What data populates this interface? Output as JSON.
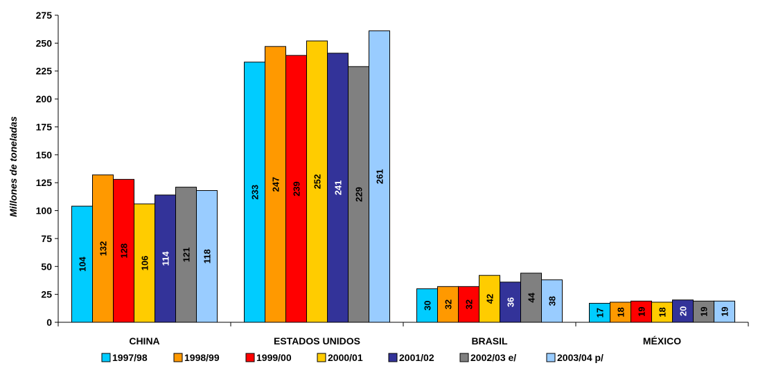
{
  "chart_data": {
    "type": "bar",
    "title": "",
    "xlabel": "",
    "ylabel": "Millones de toneladas",
    "ylim": [
      0,
      275
    ],
    "yticks": [
      0,
      25,
      50,
      75,
      100,
      125,
      150,
      175,
      200,
      225,
      250,
      275
    ],
    "grid": false,
    "legend_position": "bottom",
    "categories": [
      "CHINA",
      "ESTADOS UNIDOS",
      "BRASIL",
      "MÉXICO"
    ],
    "series": [
      {
        "name": "1997/98",
        "color": "#00CCFF",
        "label_color": "#000000",
        "values": [
          104,
          233,
          30,
          17
        ],
        "labels": [
          "104",
          "233",
          "30",
          "17"
        ]
      },
      {
        "name": "1998/99",
        "color": "#FF9900",
        "label_color": "#000000",
        "values": [
          132,
          247,
          32,
          18
        ],
        "labels": [
          "132",
          "247",
          "32",
          "18"
        ]
      },
      {
        "name": "1999/00",
        "color": "#FF0000",
        "label_color": "#000000",
        "values": [
          128,
          239,
          32,
          19
        ],
        "labels": [
          "128",
          "239",
          "32",
          "19"
        ]
      },
      {
        "name": "2000/01",
        "color": "#FFCC00",
        "label_color": "#000000",
        "values": [
          106,
          252,
          42,
          18
        ],
        "labels": [
          "106",
          "252",
          "42",
          "18"
        ]
      },
      {
        "name": "2001/02",
        "color": "#333399",
        "label_color": "#FFFFFF",
        "values": [
          114,
          241,
          36,
          20
        ],
        "labels": [
          "114",
          "241",
          "36",
          "20"
        ]
      },
      {
        "name": "2002/03 e/",
        "color": "#808080",
        "label_color": "#000000",
        "values": [
          121,
          229,
          44,
          19
        ],
        "labels": [
          "121",
          "229",
          "44",
          "19"
        ]
      },
      {
        "name": "2003/04 p/",
        "color": "#99CCFF",
        "label_color": "#000000",
        "values": [
          118,
          261,
          38,
          19
        ],
        "labels": [
          "118",
          "261",
          "38",
          "19"
        ]
      }
    ]
  }
}
